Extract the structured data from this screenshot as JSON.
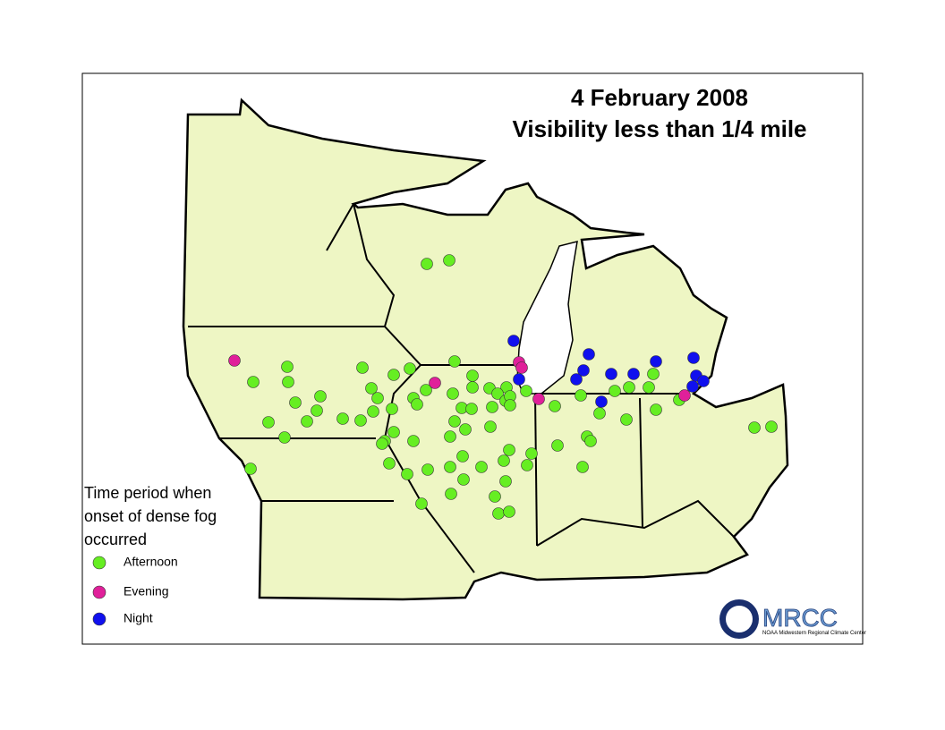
{
  "title": [
    "4 February 2008",
    "Visibility less than 1/4 mile"
  ],
  "legend": {
    "title": [
      "Time period when",
      "onset of dense fog",
      "occurred"
    ],
    "items": [
      {
        "label": "Afternoon",
        "color": "#66ee22"
      },
      {
        "label": "Evening",
        "color": "#e0209a"
      },
      {
        "label": "Night",
        "color": "#1010ee"
      }
    ]
  },
  "logo": {
    "name": "MRCC",
    "subtitle": "NOAA Midwestern Regional Climate Center"
  }
}
